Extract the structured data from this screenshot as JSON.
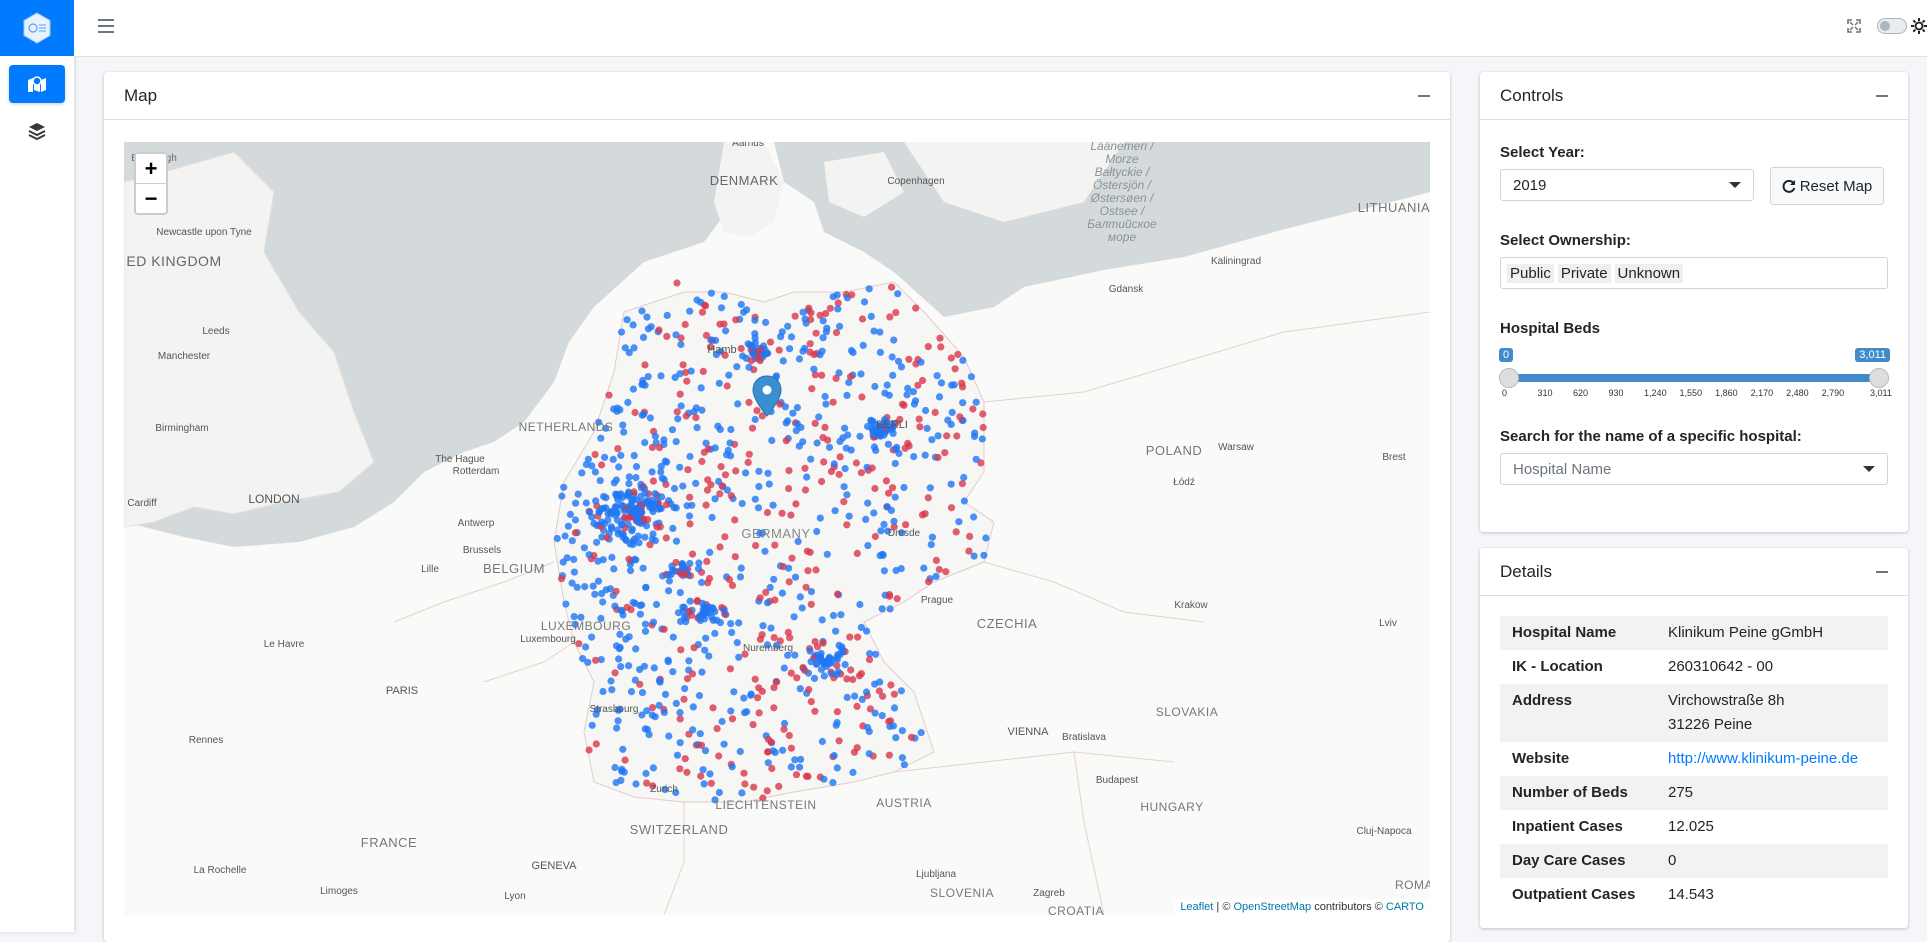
{
  "nav": {
    "logo_icon": "hexagon-logo-icon",
    "items": [
      {
        "icon": "map-icon",
        "active": true
      },
      {
        "icon": "layers-icon",
        "active": false
      }
    ]
  },
  "topbar": {
    "menu_icon": "hamburger-icon",
    "right_icons": [
      "fullscreen-icon",
      "dark-mode-toggle",
      "sun-icon"
    ]
  },
  "map_card": {
    "title": "Map",
    "zoom_in": "+",
    "zoom_out": "−",
    "marker_icon": "map-pin-icon",
    "attribution": {
      "leaflet": "Leaflet",
      "sep": " | © ",
      "osm": "OpenStreetMap",
      "contributors": " contributors © ",
      "carto": "CARTO"
    },
    "labels": {
      "denmark": "DENMARK",
      "aarhus": "Aarhus",
      "copenhagen": "Copenhagen",
      "baltic": "Läänemeri / Morze Bałtyckie / Östersjön / Østersøen / Ostsee / Балтийское море",
      "lithuania": "LITHUANIA",
      "edinburgh": "Edinburgh",
      "newcastle": "Newcastle upon Tyne",
      "uk": "ED KINGDOM",
      "leeds": "Leeds",
      "manchester": "Manchester",
      "birmingham": "Birmingham",
      "london": "LONDON",
      "cardiff": "Cardiff",
      "netherlands": "NETHERLANDS",
      "hague": "The Hague",
      "rotterdam": "Rotterdam",
      "antwerp": "Antwerp",
      "brussels": "Brussels",
      "lille": "Lille",
      "belgium": "BELGIUM",
      "luxembourg_c": "LUXEMBOURG",
      "luxembourg": "Luxembourg",
      "lehavre": "Le Havre",
      "paris": "PARIS",
      "rennes": "Rennes",
      "france": "FRANCE",
      "larochelle": "La Rochelle",
      "limoges": "Limoges",
      "geneva": "GENEVA",
      "lyon": "Lyon",
      "strasbourg": "Strasbourg",
      "zurich": "Zurich",
      "liechtenstein": "LIECHTENSTEIN",
      "switzerland": "SWITZERLAND",
      "austria": "AUSTRIA",
      "vienna": "VIENNA",
      "bratislava": "Bratislava",
      "budapest": "Budapest",
      "hungary": "HUNGARY",
      "ljubljana": "Ljubljana",
      "slovenia": "SLOVENIA",
      "zagreb": "Zagreb",
      "croatia": "CROATIA",
      "czechia": "CZECHIA",
      "prague": "Prague",
      "slovakia": "SLOVAKIA",
      "poland": "POLAND",
      "warsaw": "Warsaw",
      "lodz": "Łódź",
      "brest": "Brest",
      "krakow": "Krakow",
      "lviv": "Lviv",
      "gdansk": "Gdansk",
      "kaliningrad": "Kaliningrad",
      "cluj": "Cluj-Napoca",
      "roma": "ROMA",
      "hamburg": "Hamb",
      "berlin": "BERLI",
      "germany": "GERMANY",
      "dresden": "Dresde",
      "nuremberg": "Nuremberg"
    }
  },
  "controls": {
    "title": "Controls",
    "year_label": "Select Year:",
    "year_value": "2019",
    "reset_label": "Reset Map",
    "reset_icon": "refresh-icon",
    "ownership_label": "Select Ownership:",
    "ownership_tags": [
      "Public",
      "Private",
      "Unknown"
    ],
    "beds_label": "Hospital Beds",
    "beds_min": "0",
    "beds_max": "3,011",
    "beds_ticks": [
      "0",
      "310",
      "620",
      "930",
      "1,240",
      "1,550",
      "1,860",
      "2,170",
      "2,480",
      "2,790",
      "3,011"
    ],
    "search_label": "Search for the name of a specific hospital:",
    "search_placeholder": "Hospital Name"
  },
  "details": {
    "title": "Details",
    "rows": [
      {
        "k": "Hospital Name",
        "v": "Klinikum Peine gGmbH"
      },
      {
        "k": "IK - Location",
        "v": "260310642 - 00"
      },
      {
        "k": "Address",
        "v": "Virchowstraße 8h",
        "v2": "31226 Peine"
      },
      {
        "k": "Website",
        "v": "http://www.klinikum-peine.de"
      },
      {
        "k": "Number of Beds",
        "v": "275"
      },
      {
        "k": "Inpatient Cases",
        "v": "12.025"
      },
      {
        "k": "Day Care Cases",
        "v": "0"
      },
      {
        "k": "Outpatient Cases",
        "v": "14.543"
      }
    ]
  },
  "colors": {
    "primary": "#007bff",
    "public_dot": "#1f77f4",
    "private_dot": "#d9374b",
    "water": "#d4dadc",
    "land": "#fafaf8"
  }
}
